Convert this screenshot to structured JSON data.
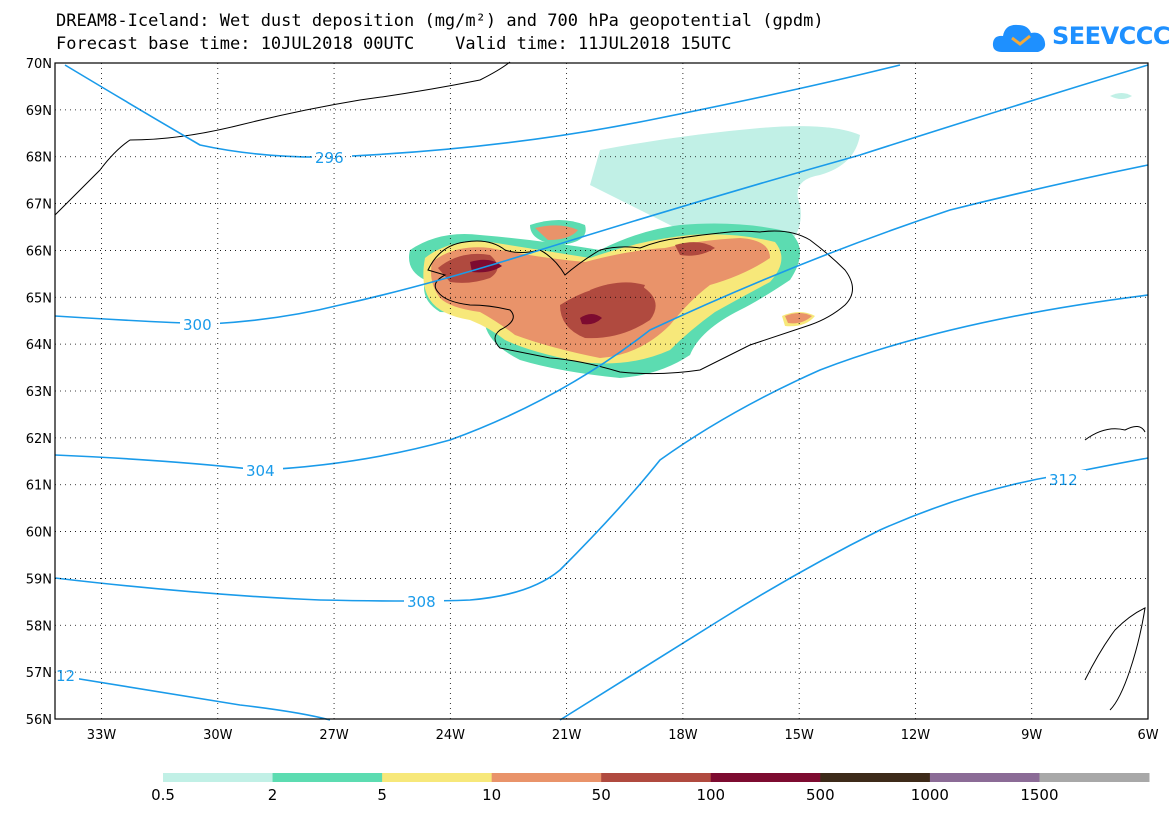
{
  "title": {
    "line1": "DREAM8-Iceland: Wet dust deposition (mg/m²) and 700 hPa geopotential (gpdm)",
    "line2": "Forecast base time: 10JUL2018 00UTC    Valid time: 11JUL2018 15UTC"
  },
  "logo": {
    "text": "SEEVCCC",
    "icon": "cloud-icon",
    "color": "#1e90ff"
  },
  "axes": {
    "lat_labels": [
      "70N",
      "69N",
      "68N",
      "67N",
      "66N",
      "65N",
      "64N",
      "63N",
      "62N",
      "61N",
      "60N",
      "59N",
      "58N",
      "57N",
      "56N"
    ],
    "lon_labels": [
      "33W",
      "30W",
      "27W",
      "24W",
      "21W",
      "18W",
      "15W",
      "12W",
      "9W",
      "6W"
    ],
    "lat_range": [
      56,
      70
    ],
    "lon_range": [
      -34.2,
      -6
    ],
    "grid": "dotted"
  },
  "contours": {
    "color": "#1a9bea",
    "labels": [
      {
        "text": "296"
      },
      {
        "text": "300"
      },
      {
        "text": "304"
      },
      {
        "text": "308"
      },
      {
        "text": "312"
      },
      {
        "text": "12"
      }
    ]
  },
  "colorbar": {
    "labels": [
      "0.5",
      "2",
      "5",
      "10",
      "50",
      "100",
      "500",
      "1000",
      "1500"
    ],
    "colors": [
      "#c1f0e6",
      "#5cdcb1",
      "#f7e87a",
      "#e9936a",
      "#b04a3f",
      "#7d0b30",
      "#3d2a19",
      "#8b6b96",
      "#a8a8a8"
    ]
  }
}
